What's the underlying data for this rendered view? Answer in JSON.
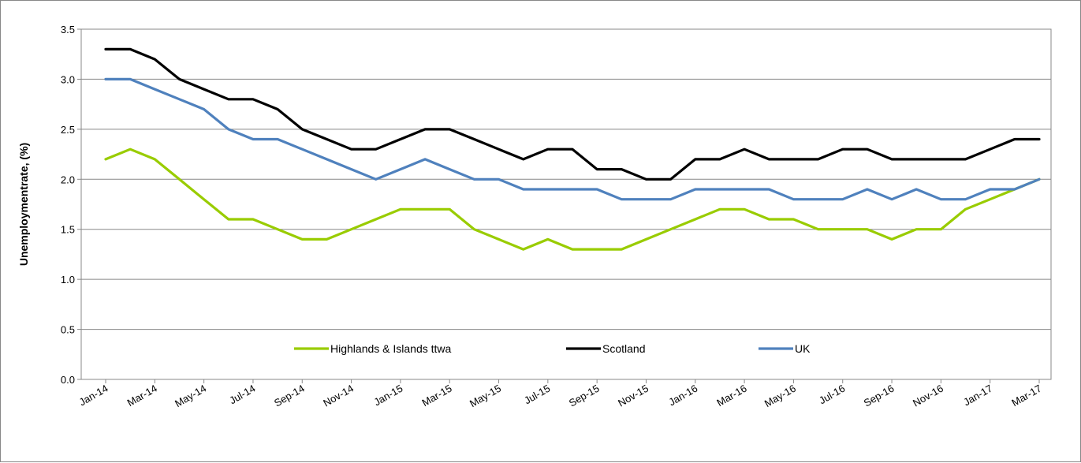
{
  "chart_data": {
    "type": "line",
    "title": "",
    "xlabel": "",
    "ylabel": "Unemploymentrate, (%)",
    "ylim": [
      0,
      3.5
    ],
    "yticks": [
      "0.0",
      "0.5",
      "1.0",
      "1.5",
      "2.0",
      "2.5",
      "3.0",
      "3.5"
    ],
    "grid": "horizontal",
    "legend_position": "inside-bottom",
    "x_tick_labels": [
      "Jan-14",
      "Mar-14",
      "May-14",
      "Jul-14",
      "Sep-14",
      "Nov-14",
      "Jan-15",
      "Mar-15",
      "May-15",
      "Jul-15",
      "Sep-15",
      "Nov-15",
      "Jan-16",
      "Mar-16",
      "May-16",
      "Jul-16",
      "Sep-16",
      "Nov-16",
      "Jan-17",
      "Mar-17"
    ],
    "x": [
      "Jan-14",
      "Feb-14",
      "Mar-14",
      "Apr-14",
      "May-14",
      "Jun-14",
      "Jul-14",
      "Aug-14",
      "Sep-14",
      "Oct-14",
      "Nov-14",
      "Dec-14",
      "Jan-15",
      "Feb-15",
      "Mar-15",
      "Apr-15",
      "May-15",
      "Jun-15",
      "Jul-15",
      "Aug-15",
      "Sep-15",
      "Oct-15",
      "Nov-15",
      "Dec-15",
      "Jan-16",
      "Feb-16",
      "Mar-16",
      "Apr-16",
      "May-16",
      "Jun-16",
      "Jul-16",
      "Aug-16",
      "Sep-16",
      "Oct-16",
      "Nov-16",
      "Dec-16",
      "Jan-17",
      "Feb-17",
      "Mar-17"
    ],
    "series": [
      {
        "name": "Highlands & Islands ttwa",
        "color": "#99cc00",
        "values": [
          2.2,
          2.3,
          2.2,
          2.0,
          1.8,
          1.6,
          1.6,
          1.5,
          1.4,
          1.4,
          1.5,
          1.6,
          1.7,
          1.7,
          1.7,
          1.5,
          1.4,
          1.3,
          1.4,
          1.3,
          1.3,
          1.3,
          1.4,
          1.5,
          1.6,
          1.7,
          1.7,
          1.6,
          1.6,
          1.5,
          1.5,
          1.5,
          1.4,
          1.5,
          1.5,
          1.7,
          1.8,
          1.9,
          2.0
        ]
      },
      {
        "name": "Scotland",
        "color": "#000000",
        "values": [
          3.3,
          3.3,
          3.2,
          3.0,
          2.9,
          2.8,
          2.8,
          2.7,
          2.5,
          2.4,
          2.3,
          2.3,
          2.4,
          2.5,
          2.5,
          2.4,
          2.3,
          2.2,
          2.3,
          2.3,
          2.1,
          2.1,
          2.0,
          2.0,
          2.2,
          2.2,
          2.3,
          2.2,
          2.2,
          2.2,
          2.3,
          2.3,
          2.2,
          2.2,
          2.2,
          2.2,
          2.3,
          2.4,
          2.4
        ]
      },
      {
        "name": "UK",
        "color": "#4f81bd",
        "values": [
          3.0,
          3.0,
          2.9,
          2.8,
          2.7,
          2.5,
          2.4,
          2.4,
          2.3,
          2.2,
          2.1,
          2.0,
          2.1,
          2.2,
          2.1,
          2.0,
          2.0,
          1.9,
          1.9,
          1.9,
          1.9,
          1.8,
          1.8,
          1.8,
          1.9,
          1.9,
          1.9,
          1.9,
          1.8,
          1.8,
          1.8,
          1.9,
          1.8,
          1.9,
          1.8,
          1.8,
          1.9,
          1.9,
          2.0
        ]
      }
    ]
  }
}
